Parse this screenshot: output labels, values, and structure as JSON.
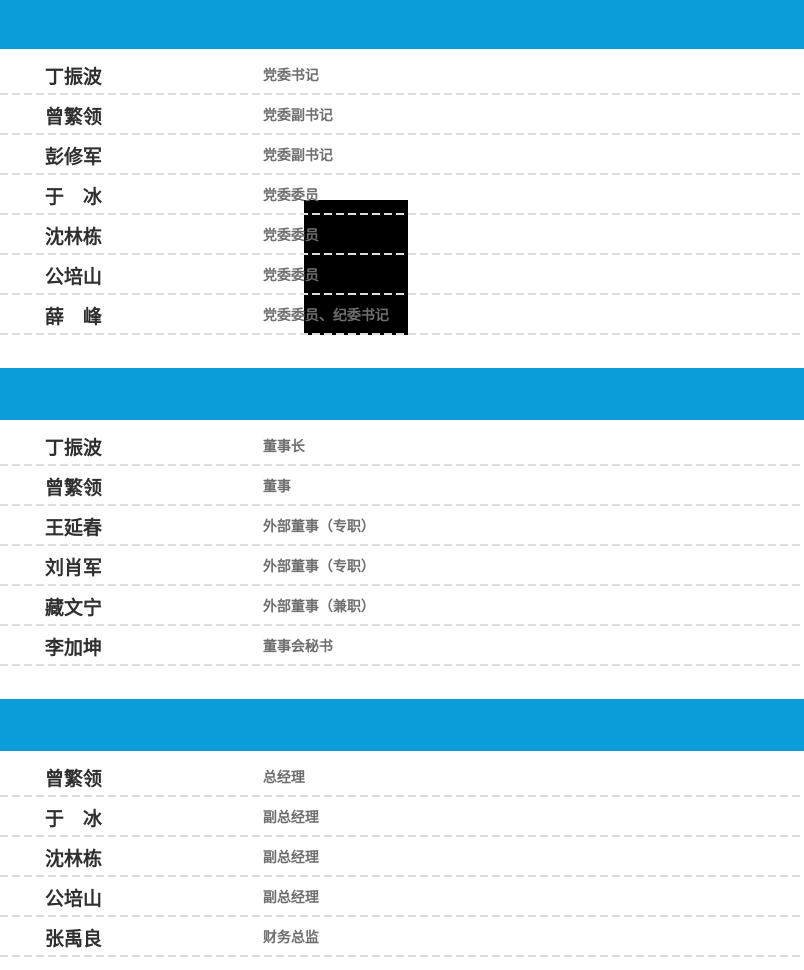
{
  "theme": {
    "header_bg": "#0a9dd9",
    "name_color": "#2f2f2f",
    "title_color": "#6e6e6e",
    "divider_color": "#dddddd",
    "redaction_color": "#000000"
  },
  "sections": [
    {
      "header_text": "",
      "members": [
        {
          "name": "丁振波",
          "title": "党委书记"
        },
        {
          "name": "曾繁领",
          "title": "党委副书记"
        },
        {
          "name": "彭修军",
          "title": "党委副书记"
        },
        {
          "name": "于　冰",
          "title": "党委委员"
        },
        {
          "name": "沈林栋",
          "title": "党委委员"
        },
        {
          "name": "公培山",
          "title": "党委委员"
        },
        {
          "name": "薛　峰",
          "title": "党委委员、纪委书记"
        }
      ]
    },
    {
      "header_text": "",
      "members": [
        {
          "name": "丁振波",
          "title": "董事长"
        },
        {
          "name": "曾繁领",
          "title": "董事"
        },
        {
          "name": "王延春",
          "title": "外部董事（专职）"
        },
        {
          "name": "刘肖军",
          "title": "外部董事（专职）"
        },
        {
          "name": "藏文宁",
          "title": "外部董事（兼职）"
        },
        {
          "name": "李加坤",
          "title": "董事会秘书"
        }
      ]
    },
    {
      "header_text": "",
      "members": [
        {
          "name": "曾繁领",
          "title": "总经理"
        },
        {
          "name": "于　冰",
          "title": "副总经理"
        },
        {
          "name": "沈林栋",
          "title": "副总经理"
        },
        {
          "name": "公培山",
          "title": "副总经理"
        },
        {
          "name": "张禹良",
          "title": "财务总监"
        }
      ]
    }
  ]
}
